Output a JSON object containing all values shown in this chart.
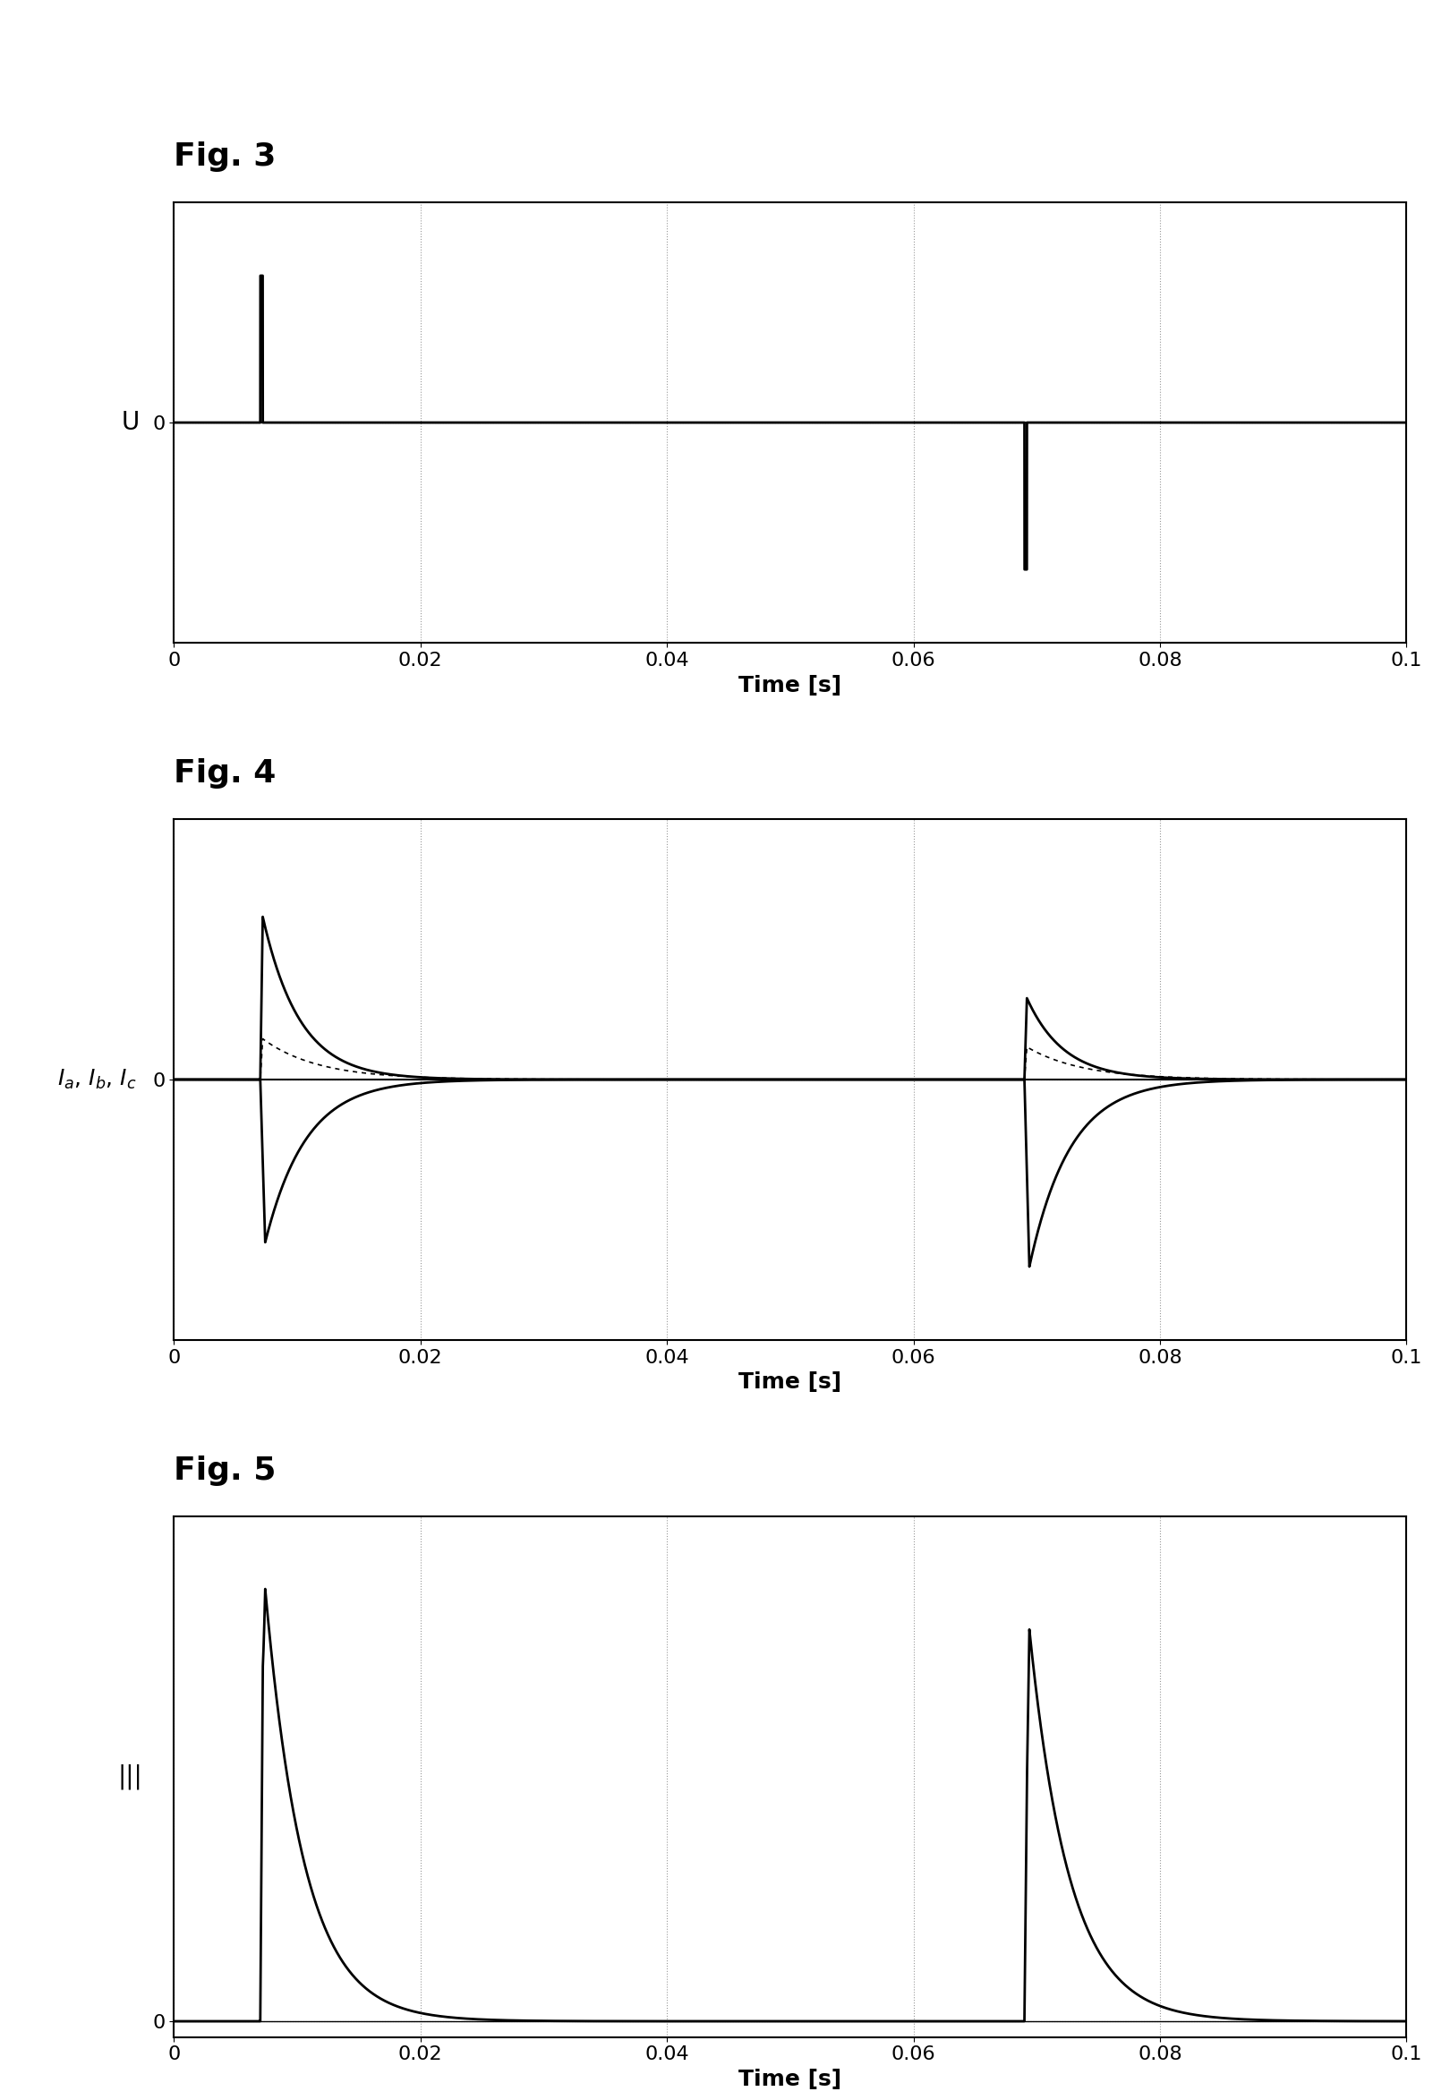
{
  "fig3_title": "Fig. 3",
  "fig4_title": "Fig. 4",
  "fig5_title": "Fig. 5",
  "xlabel": "Time [s]",
  "fig3_ylabel": "U",
  "fig4_ylabel": "I_a, I_b, I_c",
  "fig5_ylabel": "|||",
  "xlim": [
    0,
    0.1
  ],
  "xticks": [
    0,
    0.02,
    0.04,
    0.06,
    0.08,
    0.1
  ],
  "xticklabels": [
    "0",
    "0.02",
    "0.04",
    "0.06",
    "0.08",
    "0.1"
  ],
  "pulse1_time": 0.007,
  "pulse2_time": 0.069,
  "decay_tau": 0.003,
  "background_color": "#ffffff",
  "line_color": "#000000",
  "grid_color": "#999999",
  "title_fontsize": 26,
  "label_fontsize": 18,
  "tick_fontsize": 16
}
